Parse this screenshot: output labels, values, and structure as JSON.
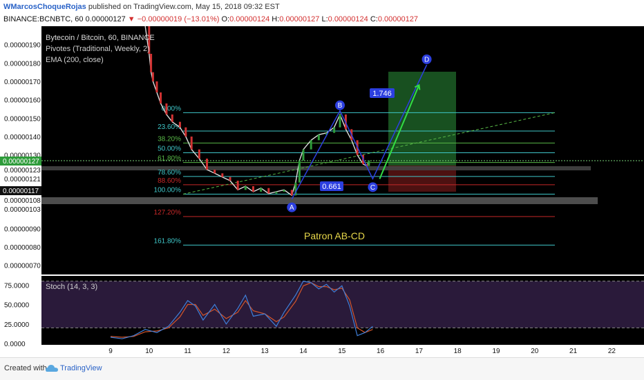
{
  "header": {
    "author": "WMarcosChoqueRojas",
    "published_text": "published on TradingView.com, May 15, 2018 09:32 EST",
    "symbol": "BINANCE:BCNBTC, 60",
    "last": "0.00000127",
    "change": "−0.00000019 (−13.01%)",
    "o_label": "O:",
    "o_val": "0.00000124",
    "h_label": "H:",
    "h_val": "0.00000127",
    "l_label": "L:",
    "l_val": "0.00000124",
    "c_label": "C:",
    "c_val": "0.00000127"
  },
  "legend": {
    "title": "Bytecoin / Bitcoin, 60, BINANCE",
    "pivots": "Pivotes (Traditional, Weekly, 2)",
    "ema": "EMA (200, close)",
    "stoch": "Stoch (14, 3, 3)"
  },
  "annotations": {
    "pattern": "Patron AB-CD",
    "ratio_bc": "0.661",
    "ratio_cd": "1.746",
    "point_a": "A",
    "point_b": "B",
    "point_c": "C",
    "point_d": "D"
  },
  "price_badges": {
    "current": "0.00000127",
    "level_123": "0.00000123",
    "level_121": "0.00000121",
    "level_117": "0.00000117",
    "level_108": "0.00000108",
    "level_103": "0.00000103"
  },
  "footer": {
    "created": "Created with",
    "brand": "TradingView"
  },
  "colors": {
    "background": "#000000",
    "up": "#2e9c3a",
    "down": "#d13232",
    "fib_cyan": "#3fc7c9",
    "fib_green": "#58b947",
    "fib_red": "#c62828",
    "stoch_k": "#3f7fd9",
    "stoch_d": "#d4552b",
    "stoch_bg": "#2a1a3a",
    "pattern": "#2c3fe0",
    "target": "#1c5e26",
    "stop": "#5a1414"
  },
  "chart_data": {
    "type": "line",
    "title": "Bytecoin / Bitcoin, 60, BINANCE",
    "x_ticks": [
      "9",
      "10",
      "11",
      "12",
      "13",
      "14",
      "15",
      "16",
      "17",
      "18",
      "19",
      "20",
      "21",
      "22"
    ],
    "y_ticks": [
      "0.00000190",
      "0.00000180",
      "0.00000170",
      "0.00000160",
      "0.00000150",
      "0.00000140",
      "0.00000130",
      "0.00000090",
      "0.00000080",
      "0.00000070"
    ],
    "ylim": [
      6.5e-07,
      2e-06
    ],
    "price_series": [
      {
        "x": 9.9,
        "y": 2e-06
      },
      {
        "x": 10.0,
        "y": 1.85e-06
      },
      {
        "x": 10.05,
        "y": 1.75e-06
      },
      {
        "x": 10.1,
        "y": 1.7e-06
      },
      {
        "x": 10.2,
        "y": 1.64e-06
      },
      {
        "x": 10.3,
        "y": 1.58e-06
      },
      {
        "x": 10.45,
        "y": 1.52e-06
      },
      {
        "x": 10.6,
        "y": 1.48e-06
      },
      {
        "x": 10.8,
        "y": 1.45e-06
      },
      {
        "x": 10.95,
        "y": 1.4e-06
      },
      {
        "x": 11.1,
        "y": 1.33e-06
      },
      {
        "x": 11.3,
        "y": 1.28e-06
      },
      {
        "x": 11.5,
        "y": 1.22e-06
      },
      {
        "x": 11.7,
        "y": 1.2e-06
      },
      {
        "x": 11.9,
        "y": 1.18e-06
      },
      {
        "x": 12.1,
        "y": 1.16e-06
      },
      {
        "x": 12.3,
        "y": 1.11e-06
      },
      {
        "x": 12.5,
        "y": 1.13e-06
      },
      {
        "x": 12.7,
        "y": 1.1e-06
      },
      {
        "x": 12.9,
        "y": 1.12e-06
      },
      {
        "x": 13.1,
        "y": 1.09e-06
      },
      {
        "x": 13.3,
        "y": 1.1e-06
      },
      {
        "x": 13.5,
        "y": 1.11e-06
      },
      {
        "x": 13.7,
        "y": 1.08e-06
      },
      {
        "x": 13.8,
        "y": 1.15e-06
      },
      {
        "x": 13.9,
        "y": 1.27e-06
      },
      {
        "x": 14.0,
        "y": 1.33e-06
      },
      {
        "x": 14.2,
        "y": 1.38e-06
      },
      {
        "x": 14.4,
        "y": 1.41e-06
      },
      {
        "x": 14.6,
        "y": 1.42e-06
      },
      {
        "x": 14.8,
        "y": 1.45e-06
      },
      {
        "x": 14.95,
        "y": 1.52e-06
      },
      {
        "x": 15.1,
        "y": 1.44e-06
      },
      {
        "x": 15.25,
        "y": 1.38e-06
      },
      {
        "x": 15.4,
        "y": 1.3e-06
      },
      {
        "x": 15.55,
        "y": 1.25e-06
      },
      {
        "x": 15.65,
        "y": 1.24e-06
      },
      {
        "x": 15.7,
        "y": 1.27e-06
      }
    ],
    "fibonacci": [
      {
        "label": "0.00%",
        "y": 1.53e-06,
        "color": "#3fc7c9"
      },
      {
        "label": "23.60%",
        "y": 1.43e-06,
        "color": "#3fc7c9"
      },
      {
        "label": "38.20%",
        "y": 1.365e-06,
        "color": "#58b947"
      },
      {
        "label": "50.00%",
        "y": 1.312e-06,
        "color": "#3fc7c9"
      },
      {
        "label": "61.80%",
        "y": 1.259e-06,
        "color": "#58b947"
      },
      {
        "label": "78.60%",
        "y": 1.183e-06,
        "color": "#3fc7c9"
      },
      {
        "label": "88.60%",
        "y": 1.138e-06,
        "color": "#c62828"
      },
      {
        "label": "100.00%",
        "y": 1.087e-06,
        "color": "#3fc7c9"
      },
      {
        "label": "127.20%",
        "y": 9.65e-07,
        "color": "#c62828"
      },
      {
        "label": "161.80%",
        "y": 8.1e-07,
        "color": "#3fc7c9"
      }
    ],
    "abcd": [
      {
        "label": "A",
        "x": 13.7,
        "y": 1.06e-06
      },
      {
        "label": "B",
        "x": 14.95,
        "y": 1.54e-06
      },
      {
        "label": "C",
        "x": 15.8,
        "y": 1.17e-06
      },
      {
        "label": "D",
        "x": 17.2,
        "y": 1.79e-06
      }
    ],
    "stoch": {
      "ylim": [
        0,
        85
      ],
      "y_ticks": [
        "75.0000",
        "50.0000",
        "25.0000",
        "0.0000"
      ],
      "k": [
        {
          "x": 9.0,
          "y": 8
        },
        {
          "x": 9.3,
          "y": 6
        },
        {
          "x": 9.6,
          "y": 10
        },
        {
          "x": 9.9,
          "y": 18
        },
        {
          "x": 10.2,
          "y": 14
        },
        {
          "x": 10.5,
          "y": 22
        },
        {
          "x": 10.8,
          "y": 40
        },
        {
          "x": 11.0,
          "y": 55
        },
        {
          "x": 11.2,
          "y": 48
        },
        {
          "x": 11.4,
          "y": 30
        },
        {
          "x": 11.7,
          "y": 50
        },
        {
          "x": 12.0,
          "y": 25
        },
        {
          "x": 12.3,
          "y": 45
        },
        {
          "x": 12.5,
          "y": 62
        },
        {
          "x": 12.7,
          "y": 35
        },
        {
          "x": 13.0,
          "y": 38
        },
        {
          "x": 13.3,
          "y": 22
        },
        {
          "x": 13.5,
          "y": 40
        },
        {
          "x": 13.8,
          "y": 62
        },
        {
          "x": 14.0,
          "y": 80
        },
        {
          "x": 14.2,
          "y": 78
        },
        {
          "x": 14.4,
          "y": 70
        },
        {
          "x": 14.6,
          "y": 76
        },
        {
          "x": 14.8,
          "y": 66
        },
        {
          "x": 15.0,
          "y": 74
        },
        {
          "x": 15.2,
          "y": 48
        },
        {
          "x": 15.4,
          "y": 10
        },
        {
          "x": 15.6,
          "y": 14
        },
        {
          "x": 15.8,
          "y": 22
        }
      ],
      "d": [
        {
          "x": 9.0,
          "y": 9
        },
        {
          "x": 9.3,
          "y": 8
        },
        {
          "x": 9.6,
          "y": 9
        },
        {
          "x": 9.9,
          "y": 15
        },
        {
          "x": 10.2,
          "y": 16
        },
        {
          "x": 10.5,
          "y": 20
        },
        {
          "x": 10.8,
          "y": 34
        },
        {
          "x": 11.0,
          "y": 50
        },
        {
          "x": 11.2,
          "y": 50
        },
        {
          "x": 11.4,
          "y": 36
        },
        {
          "x": 11.7,
          "y": 44
        },
        {
          "x": 12.0,
          "y": 32
        },
        {
          "x": 12.3,
          "y": 40
        },
        {
          "x": 12.5,
          "y": 55
        },
        {
          "x": 12.7,
          "y": 42
        },
        {
          "x": 13.0,
          "y": 38
        },
        {
          "x": 13.3,
          "y": 28
        },
        {
          "x": 13.5,
          "y": 34
        },
        {
          "x": 13.8,
          "y": 54
        },
        {
          "x": 14.0,
          "y": 74
        },
        {
          "x": 14.2,
          "y": 78
        },
        {
          "x": 14.4,
          "y": 73
        },
        {
          "x": 14.6,
          "y": 73
        },
        {
          "x": 14.8,
          "y": 69
        },
        {
          "x": 15.0,
          "y": 71
        },
        {
          "x": 15.2,
          "y": 56
        },
        {
          "x": 15.4,
          "y": 20
        },
        {
          "x": 15.6,
          "y": 14
        },
        {
          "x": 15.8,
          "y": 18
        }
      ]
    }
  }
}
